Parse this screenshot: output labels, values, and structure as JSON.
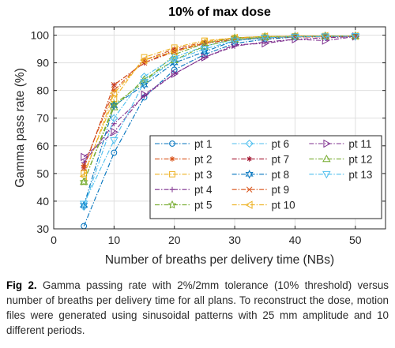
{
  "chart_data": {
    "type": "line",
    "title": "10% of max dose",
    "xlabel": "Number of breaths per delivery time (NBs)",
    "ylabel": "Gamma pass rate (%)",
    "xlim": [
      0,
      55
    ],
    "ylim": [
      30,
      103
    ],
    "xticks": [
      0,
      10,
      20,
      30,
      40,
      50
    ],
    "yticks": [
      30,
      40,
      50,
      60,
      70,
      80,
      90,
      100
    ],
    "grid": true,
    "legend_position": "lower-right",
    "legend_columns": 3,
    "x": [
      5,
      10,
      15,
      20,
      25,
      30,
      35,
      40,
      45,
      50
    ],
    "series": [
      {
        "name": "pt 1",
        "color": "#0072BD",
        "marker": "circle",
        "values": [
          31.0,
          57.5,
          77.5,
          87.5,
          93.0,
          97.0,
          98.5,
          99.3,
          99.5,
          99.6
        ]
      },
      {
        "name": "pt 2",
        "color": "#D95319",
        "marker": "asterisk",
        "values": [
          53.0,
          80.0,
          91.0,
          95.0,
          97.5,
          99.0,
          99.5,
          99.6,
          99.7,
          99.7
        ]
      },
      {
        "name": "pt 3",
        "color": "#EDB120",
        "marker": "square",
        "values": [
          50.0,
          77.0,
          92.0,
          95.5,
          98.0,
          99.0,
          99.5,
          99.6,
          99.7,
          99.7
        ]
      },
      {
        "name": "pt 4",
        "color": "#7E2F8E",
        "marker": "plus",
        "values": [
          54.0,
          68.0,
          78.0,
          86.0,
          92.0,
          96.0,
          97.5,
          98.5,
          99.0,
          99.5
        ]
      },
      {
        "name": "pt 5",
        "color": "#77AC30",
        "marker": "star",
        "values": [
          47.0,
          75.0,
          83.0,
          93.0,
          97.0,
          99.0,
          99.5,
          99.6,
          99.7,
          99.7
        ]
      },
      {
        "name": "pt 6",
        "color": "#4DBEEE",
        "marker": "diamond",
        "values": [
          38.0,
          70.0,
          85.0,
          92.0,
          96.0,
          98.5,
          99.2,
          99.5,
          99.6,
          99.6
        ]
      },
      {
        "name": "pt 7",
        "color": "#A2142F",
        "marker": "asterisk",
        "values": [
          52.0,
          82.0,
          90.0,
          94.5,
          97.0,
          98.5,
          99.0,
          99.3,
          99.4,
          99.5
        ]
      },
      {
        "name": "pt 8",
        "color": "#0072BD",
        "marker": "hexagram",
        "values": [
          38.5,
          74.5,
          82.0,
          90.0,
          94.0,
          98.0,
          99.0,
          99.5,
          99.6,
          99.6
        ]
      },
      {
        "name": "pt 9",
        "color": "#D95319",
        "marker": "x",
        "values": [
          52.0,
          82.0,
          90.0,
          94.0,
          97.0,
          98.5,
          99.0,
          99.3,
          99.5,
          99.6
        ]
      },
      {
        "name": "pt 10",
        "color": "#EDB120",
        "marker": "triangle-left",
        "values": [
          49.0,
          79.0,
          91.0,
          94.0,
          97.5,
          99.0,
          99.5,
          99.6,
          99.7,
          99.7
        ]
      },
      {
        "name": "pt 11",
        "color": "#7E2F8E",
        "marker": "triangle-right",
        "values": [
          56.0,
          65.0,
          78.5,
          86.0,
          92.0,
          96.5,
          97.0,
          98.5,
          98.0,
          99.5
        ]
      },
      {
        "name": "pt 12",
        "color": "#77AC30",
        "marker": "triangle-up",
        "values": [
          47.0,
          74.0,
          84.0,
          91.0,
          96.0,
          98.5,
          99.2,
          99.5,
          99.6,
          99.7
        ]
      },
      {
        "name": "pt 13",
        "color": "#4DBEEE",
        "marker": "triangle-down",
        "values": [
          39.0,
          62.0,
          83.0,
          91.0,
          95.0,
          98.0,
          99.0,
          99.4,
          99.5,
          99.6
        ]
      }
    ]
  },
  "caption": {
    "label": "Fig 2.",
    "text": " Gamma passing rate with 2%/2mm tolerance (10% threshold) versus number of breaths per delivery time for all plans. To reconstruct the dose, motion files were generated using sinusoidal patterns with 25 mm amplitude and 10 different periods."
  }
}
